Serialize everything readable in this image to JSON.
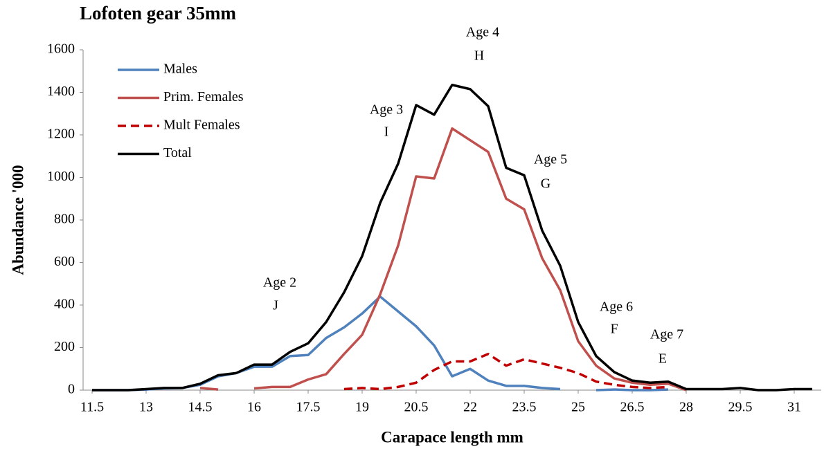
{
  "chart_data": {
    "type": "line",
    "title": "Lofoten gear 35mm",
    "x_label": "Carapace length mm",
    "y_label": "Abundance '000",
    "x": [
      11.5,
      12,
      12.5,
      13,
      13.5,
      14,
      14.5,
      15,
      15.5,
      16,
      16.5,
      17,
      17.5,
      18,
      18.5,
      19,
      19.5,
      20,
      20.5,
      21,
      21.5,
      22,
      22.5,
      23,
      23.5,
      24,
      24.5,
      25,
      25.5,
      26,
      26.5,
      27,
      27.5,
      28,
      28.5,
      29,
      29.5,
      30,
      30.5,
      31,
      31.5
    ],
    "xlim": [
      11.25,
      31.75
    ],
    "xticks": [
      11.5,
      13,
      14.5,
      16,
      17.5,
      19,
      20.5,
      22,
      23.5,
      25,
      26.5,
      28,
      29.5,
      31
    ],
    "ylim": [
      0,
      1600
    ],
    "yticks": [
      0,
      200,
      400,
      600,
      800,
      1000,
      1200,
      1400,
      1600
    ],
    "grid": false,
    "legend": "upper left",
    "series": [
      {
        "name": "Males",
        "color": "#4f81bd",
        "style": "solid",
        "values": [
          0,
          0,
          0,
          3,
          8,
          10,
          25,
          65,
          80,
          110,
          110,
          160,
          165,
          245,
          295,
          360,
          440,
          370,
          300,
          210,
          65,
          100,
          45,
          20,
          20,
          10,
          5,
          null,
          0,
          3,
          0,
          0,
          3,
          null,
          null,
          null,
          null,
          null,
          null,
          null,
          null
        ]
      },
      {
        "name": "Prim. Females",
        "color": "#c0504d",
        "style": "solid",
        "values": [
          null,
          null,
          null,
          null,
          null,
          null,
          10,
          3,
          null,
          8,
          15,
          15,
          50,
          75,
          170,
          260,
          450,
          680,
          1005,
          995,
          1230,
          1175,
          1120,
          900,
          850,
          620,
          470,
          230,
          115,
          55,
          35,
          25,
          30,
          0,
          null,
          null,
          null,
          null,
          null,
          null,
          null
        ]
      },
      {
        "name": "Mult Females",
        "color": "#c00000",
        "style": "dashed",
        "values": [
          null,
          null,
          null,
          null,
          null,
          null,
          null,
          null,
          null,
          null,
          null,
          null,
          null,
          null,
          5,
          10,
          5,
          15,
          35,
          95,
          135,
          135,
          170,
          115,
          145,
          125,
          105,
          80,
          40,
          25,
          15,
          10,
          15,
          null,
          null,
          null,
          null,
          null,
          null,
          null,
          null
        ]
      },
      {
        "name": "Total",
        "color": "#000000",
        "style": "solid",
        "values": [
          0,
          0,
          0,
          5,
          10,
          10,
          30,
          70,
          80,
          120,
          120,
          180,
          220,
          320,
          460,
          630,
          880,
          1065,
          1340,
          1295,
          1435,
          1415,
          1335,
          1045,
          1010,
          750,
          585,
          320,
          160,
          85,
          45,
          35,
          40,
          5,
          5,
          5,
          10,
          0,
          0,
          5,
          5
        ]
      }
    ],
    "annotations": [
      [
        "Age  2",
        "J"
      ],
      [
        "Age 3",
        "I"
      ],
      [
        "Age 4",
        "H"
      ],
      [
        "Age 5",
        "G"
      ],
      [
        "Age 6",
        "F"
      ],
      [
        "Age 7",
        "E"
      ]
    ]
  }
}
